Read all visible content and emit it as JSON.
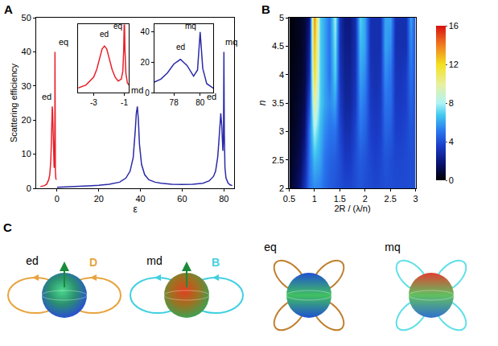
{
  "chart_data": [
    {
      "panel": "A",
      "type": "line",
      "x_label": "ε",
      "y_label": "Scattering efficiency",
      "series": [
        {
          "color": "#e8202a",
          "x": [
            -8,
            -6,
            -5,
            -4,
            -3.5,
            -3,
            -2.8,
            -2.6,
            -2.45,
            -2.3,
            -2.15,
            -2,
            -1.8,
            -1.6,
            -1.4,
            -1.2,
            -1.1,
            -1.04,
            -1,
            -0.96,
            -0.9,
            -0.8,
            -0.6,
            -0.4
          ],
          "values": [
            0.5,
            0.8,
            1.2,
            2.5,
            4,
            8,
            12,
            18,
            22.5,
            24,
            22.5,
            18,
            12,
            8,
            6,
            7,
            11,
            22,
            40,
            22,
            10,
            5,
            3,
            2.5
          ]
        },
        {
          "color": "#2a2aa8",
          "x": [
            0,
            5,
            10,
            15,
            20,
            25,
            30,
            33,
            35,
            36.5,
            37.5,
            38,
            38.5,
            39,
            39.5,
            40.5,
            42,
            44,
            47,
            50,
            55,
            60,
            65,
            70,
            73,
            75,
            76,
            77,
            77.5,
            78,
            78.5,
            79,
            79.5,
            79.8,
            80,
            80.2,
            80.5,
            81,
            82,
            83,
            84
          ],
          "values": [
            0.3,
            0.4,
            0.5,
            0.7,
            0.9,
            1.2,
            1.8,
            3,
            5,
            9,
            17,
            22,
            24,
            20,
            13,
            7,
            4,
            2.5,
            1.8,
            1.5,
            1.2,
            1.1,
            1.2,
            1.5,
            2.2,
            3.5,
            5,
            9,
            13,
            19,
            22,
            18,
            11,
            15,
            40,
            16,
            6,
            3,
            1.5,
            1,
            0.8
          ]
        }
      ],
      "xlim": [
        -10,
        85
      ],
      "xticks": [
        0,
        20,
        40,
        60,
        80
      ],
      "ylim": [
        0,
        50
      ],
      "yticks": [
        0,
        10,
        20,
        30,
        40,
        50
      ],
      "annotations": [
        {
          "text": "ed",
          "x": -5,
          "y": 25
        },
        {
          "text": "eq",
          "x": 3,
          "y": 41
        },
        {
          "text": "md",
          "x": 38.5,
          "y": 27
        },
        {
          "text": "ed",
          "x": 74,
          "y": 25
        },
        {
          "text": "mq",
          "x": 83.5,
          "y": 41
        }
      ],
      "insets": [
        {
          "color": "#e8202a",
          "xlim": [
            -4,
            -0.7
          ],
          "xticks": [
            -3,
            -1
          ],
          "ylim": [
            0,
            35
          ],
          "tick_labels": "x",
          "annotations": [
            {
              "text": "ed",
              "x": -2.3,
              "y": 27
            },
            {
              "text": "eq",
              "x": -1.4,
              "y": 31
            }
          ]
        },
        {
          "color": "#2a2aa8",
          "xlim": [
            76.5,
            81
          ],
          "xticks": [
            78,
            80
          ],
          "ylim": [
            0,
            45
          ],
          "yticks": [
            0,
            20,
            40
          ],
          "annotations": [
            {
              "text": "ed",
              "x": 78.5,
              "y": 26
            },
            {
              "text": "mq",
              "x": 79.3,
              "y": 40
            }
          ]
        }
      ]
    },
    {
      "panel": "B",
      "type": "heatmap",
      "x_label": "2R / (λ/n)",
      "y_label": "n",
      "x": [
        0.5,
        0.6,
        0.7,
        0.8,
        0.9,
        1.0,
        1.1,
        1.2,
        1.3,
        1.4,
        1.5,
        1.6,
        1.7,
        1.8,
        1.9,
        2.0,
        2.1,
        2.2,
        2.3,
        2.4,
        2.5,
        2.6,
        2.7,
        2.8,
        2.9,
        3.0
      ],
      "y": [
        2,
        2.5,
        3,
        3.5,
        4,
        4.5,
        5
      ],
      "z": [
        [
          0.6,
          1,
          1.8,
          3.2,
          5,
          5.5,
          5.3,
          4.8,
          4.4,
          4.2,
          4,
          3.8,
          3.8,
          4,
          4.2,
          4,
          3.9,
          3.8,
          3.9,
          4,
          4,
          3.9,
          3.9,
          3.9,
          4,
          4
        ],
        [
          0.5,
          0.8,
          1.3,
          2.5,
          5,
          6.5,
          6,
          5,
          4.6,
          4.4,
          4,
          3.4,
          3.4,
          4,
          4.4,
          4.2,
          3.8,
          3.6,
          3.8,
          4.2,
          4,
          3.8,
          3.8,
          3.9,
          4,
          4
        ],
        [
          0.4,
          0.6,
          1,
          1.8,
          5,
          8,
          6.5,
          5.5,
          5,
          5,
          3.8,
          3,
          3,
          3.8,
          5,
          4.6,
          3.6,
          3.4,
          3.6,
          4.6,
          4.4,
          3.6,
          3.6,
          3.8,
          4.2,
          4
        ],
        [
          0.3,
          0.5,
          0.8,
          1.3,
          4,
          10,
          7,
          6,
          5.5,
          6,
          3.5,
          2.6,
          2.6,
          3.4,
          5.5,
          5,
          3.4,
          3.2,
          3.4,
          5,
          4.8,
          3.4,
          3.4,
          3.6,
          4.6,
          4
        ],
        [
          0.3,
          0.4,
          0.6,
          1,
          3,
          12,
          7,
          6,
          5,
          7,
          3.2,
          2.4,
          2.4,
          3.2,
          6,
          5.5,
          3.2,
          3,
          3.2,
          5.5,
          5,
          3.2,
          3.2,
          3.5,
          5,
          4
        ],
        [
          0.2,
          0.3,
          0.5,
          0.9,
          2.5,
          13,
          7,
          6,
          5,
          7.5,
          3,
          2.2,
          2.2,
          3,
          6.5,
          6,
          3,
          3,
          3,
          6,
          5.5,
          3,
          3,
          3,
          5.5,
          4
        ],
        [
          0.2,
          0.3,
          0.5,
          0.8,
          2,
          14,
          7,
          6,
          5,
          8,
          3,
          2,
          2,
          3,
          7,
          6,
          3,
          3,
          3,
          6,
          6,
          3,
          3,
          3,
          6,
          4
        ]
      ],
      "xlim": [
        0.5,
        3
      ],
      "xticks": [
        0.5,
        1,
        1.5,
        2,
        2.5,
        3
      ],
      "ylim": [
        2,
        5
      ],
      "yticks": [
        2,
        2.5,
        3,
        3.5,
        4,
        4.5,
        5
      ],
      "zlim": [
        0,
        16
      ],
      "zticks": [
        0,
        4,
        8,
        12,
        16
      ]
    }
  ],
  "diagram": {
    "panel": "C",
    "items": [
      {
        "label": "ed",
        "field": "D",
        "color": "#e8a33d"
      },
      {
        "label": "md",
        "field": "B",
        "color": "#40d0e0"
      },
      {
        "label": "eq",
        "color": "#c08030"
      },
      {
        "label": "mq",
        "color": "#60e0e8"
      }
    ]
  }
}
